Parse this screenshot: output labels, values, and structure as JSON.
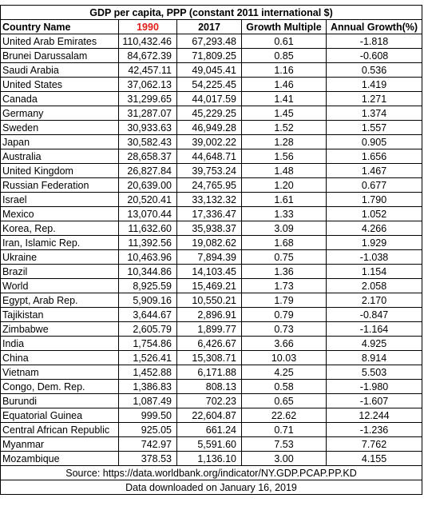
{
  "title": "GDP per capita, PPP (constant 2011  international $)",
  "headers": {
    "country": "Country Name",
    "y1990": "1990",
    "y2017": "2017",
    "multiple": "Growth Multiple",
    "growth": "Annual Growth(%)"
  },
  "rows": [
    {
      "country": "United Arab Emirates",
      "y1990": "110,432.46",
      "y2017": "67,293.48",
      "multiple": "0.61",
      "growth": "-1.818"
    },
    {
      "country": "Brunei Darussalam",
      "y1990": "84,672.39",
      "y2017": "71,809.25",
      "multiple": "0.85",
      "growth": "-0.608"
    },
    {
      "country": "Saudi Arabia",
      "y1990": "42,457.11",
      "y2017": "49,045.41",
      "multiple": "1.16",
      "growth": "0.536"
    },
    {
      "country": "United States",
      "y1990": "37,062.13",
      "y2017": "54,225.45",
      "multiple": "1.46",
      "growth": "1.419"
    },
    {
      "country": "Canada",
      "y1990": "31,299.65",
      "y2017": "44,017.59",
      "multiple": "1.41",
      "growth": "1.271"
    },
    {
      "country": "Germany",
      "y1990": "31,287.07",
      "y2017": "45,229.25",
      "multiple": "1.45",
      "growth": "1.374"
    },
    {
      "country": "Sweden",
      "y1990": "30,933.63",
      "y2017": "46,949.28",
      "multiple": "1.52",
      "growth": "1.557"
    },
    {
      "country": "Japan",
      "y1990": "30,582.43",
      "y2017": "39,002.22",
      "multiple": "1.28",
      "growth": "0.905"
    },
    {
      "country": "Australia",
      "y1990": "28,658.37",
      "y2017": "44,648.71",
      "multiple": "1.56",
      "growth": "1.656"
    },
    {
      "country": "United Kingdom",
      "y1990": "26,827.84",
      "y2017": "39,753.24",
      "multiple": "1.48",
      "growth": "1.467"
    },
    {
      "country": "Russian Federation",
      "y1990": "20,639.00",
      "y2017": "24,765.95",
      "multiple": "1.20",
      "growth": "0.677"
    },
    {
      "country": "Israel",
      "y1990": "20,520.41",
      "y2017": "33,132.32",
      "multiple": "1.61",
      "growth": "1.790"
    },
    {
      "country": "Mexico",
      "y1990": "13,070.44",
      "y2017": "17,336.47",
      "multiple": "1.33",
      "growth": "1.052"
    },
    {
      "country": "Korea, Rep.",
      "y1990": "11,632.60",
      "y2017": "35,938.37",
      "multiple": "3.09",
      "growth": "4.266"
    },
    {
      "country": "Iran, Islamic Rep.",
      "y1990": "11,392.56",
      "y2017": "19,082.62",
      "multiple": "1.68",
      "growth": "1.929"
    },
    {
      "country": "Ukraine",
      "y1990": "10,463.96",
      "y2017": "7,894.39",
      "multiple": "0.75",
      "growth": "-1.038"
    },
    {
      "country": "Brazil",
      "y1990": "10,344.86",
      "y2017": "14,103.45",
      "multiple": "1.36",
      "growth": "1.154"
    },
    {
      "country": "World",
      "y1990": "8,925.59",
      "y2017": "15,469.21",
      "multiple": "1.73",
      "growth": "2.058"
    },
    {
      "country": "Egypt, Arab Rep.",
      "y1990": "5,909.16",
      "y2017": "10,550.21",
      "multiple": "1.79",
      "growth": "2.170"
    },
    {
      "country": "Tajikistan",
      "y1990": "3,644.67",
      "y2017": "2,896.91",
      "multiple": "0.79",
      "growth": "-0.847"
    },
    {
      "country": "Zimbabwe",
      "y1990": "2,605.79",
      "y2017": "1,899.77",
      "multiple": "0.73",
      "growth": "-1.164"
    },
    {
      "country": "India",
      "y1990": "1,754.86",
      "y2017": "6,426.67",
      "multiple": "3.66",
      "growth": "4.925"
    },
    {
      "country": "China",
      "y1990": "1,526.41",
      "y2017": "15,308.71",
      "multiple": "10.03",
      "growth": "8.914"
    },
    {
      "country": "Vietnam",
      "y1990": "1,452.88",
      "y2017": "6,171.88",
      "multiple": "4.25",
      "growth": "5.503"
    },
    {
      "country": "Congo, Dem. Rep.",
      "y1990": "1,386.83",
      "y2017": "808.13",
      "multiple": "0.58",
      "growth": "-1.980"
    },
    {
      "country": "Burundi",
      "y1990": "1,087.49",
      "y2017": "702.23",
      "multiple": "0.65",
      "growth": "-1.607"
    },
    {
      "country": "Equatorial Guinea",
      "y1990": "999.50",
      "y2017": "22,604.87",
      "multiple": "22.62",
      "growth": "12.244"
    },
    {
      "country": "Central African Republic",
      "y1990": "925.05",
      "y2017": "661.24",
      "multiple": "0.71",
      "growth": "-1.236"
    },
    {
      "country": "Myanmar",
      "y1990": "742.97",
      "y2017": "5,591.60",
      "multiple": "7.53",
      "growth": "7.762"
    },
    {
      "country": "Mozambique",
      "y1990": "378.53",
      "y2017": "1,136.10",
      "multiple": "3.00",
      "growth": "4.155"
    }
  ],
  "source": "Source: https://data.worldbank.org/indicator/NY.GDP.PCAP.PP.KD",
  "downloaded": "Data downloaded on January 16, 2019",
  "colors": {
    "year_1990_header": "#e0201a",
    "grid": "#000000"
  }
}
